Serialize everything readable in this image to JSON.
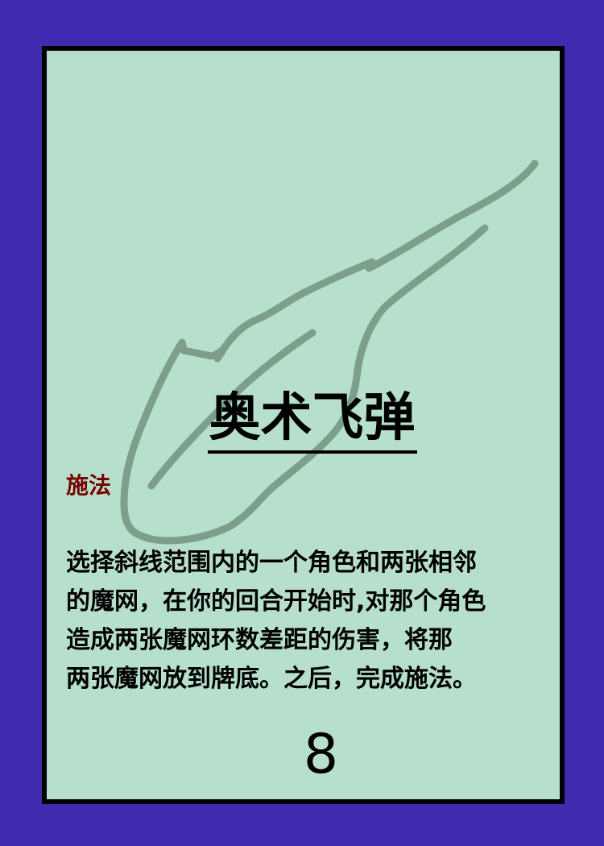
{
  "card": {
    "title": "奥术飞弹",
    "type": "施法",
    "rules_text": "选择斜线范围内的一个角色和两张相邻\n的魔网，在你的回合开始时,对那个角色\n造成两张魔网环数差距的伤害，将那\n两张魔网放到牌底。之后，完成施法。",
    "cost": "8",
    "art_icon": "magic-missile-sketch-icon"
  },
  "colors": {
    "background": "#3f2bb0",
    "card_face": "#b6dfcc",
    "border": "#000000",
    "type_label": "#7a0000",
    "sketch_stroke": "#7d9e8b"
  }
}
